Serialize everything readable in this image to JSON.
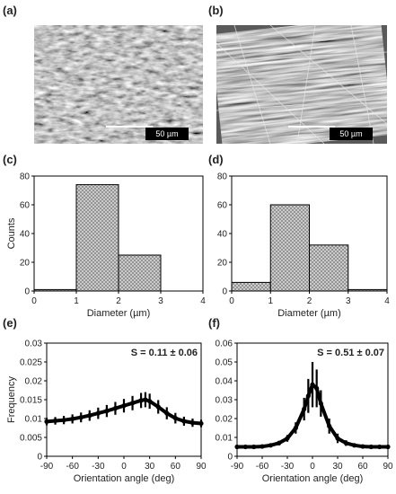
{
  "panels": {
    "a": {
      "label": "(a)",
      "scalebar": "50 µm"
    },
    "b": {
      "label": "(b)",
      "scalebar": "50 µm"
    },
    "c": {
      "label": "(c)"
    },
    "d": {
      "label": "(d)"
    },
    "e": {
      "label": "(e)"
    },
    "f": {
      "label": "(f)"
    }
  },
  "colors": {
    "bar_fill": "#d4d4d4",
    "bar_stroke": "#000000",
    "line": "#000000"
  },
  "chart_data": [
    {
      "id": "c",
      "type": "bar",
      "bin_edges": [
        0,
        1,
        2,
        3,
        4
      ],
      "values": [
        1,
        74,
        25,
        0
      ],
      "xlabel": "Diameter (µm)",
      "ylabel": "Counts",
      "xlim": [
        0,
        4
      ],
      "ylim": [
        0,
        80
      ],
      "xticks": [
        0,
        1,
        2,
        3,
        4
      ],
      "yticks": [
        0,
        20,
        40,
        60,
        80
      ],
      "fill_pattern": "crosshatch"
    },
    {
      "id": "d",
      "type": "bar",
      "bin_edges": [
        0,
        1,
        2,
        3,
        4
      ],
      "values": [
        6,
        60,
        32,
        1
      ],
      "xlabel": "Diameter (µm)",
      "ylabel": "",
      "xlim": [
        0,
        4
      ],
      "ylim": [
        0,
        80
      ],
      "xticks": [
        0,
        1,
        2,
        3,
        4
      ],
      "yticks": [
        0,
        20,
        40,
        60,
        80
      ],
      "fill_pattern": "crosshatch"
    },
    {
      "id": "e",
      "type": "line",
      "annotation": "S = 0.11 ± 0.06",
      "xlabel": "Orientation angle (deg)",
      "ylabel": "Frequency",
      "xlim": [
        -90,
        90
      ],
      "ylim": [
        0,
        0.03
      ],
      "xticks": [
        -90,
        -60,
        -30,
        0,
        30,
        60,
        90
      ],
      "yticks": [
        0,
        0.005,
        0.01,
        0.015,
        0.02,
        0.025,
        0.03
      ],
      "ytick_labels": [
        "0",
        "0.005",
        "0.01",
        "0.015",
        "0.02",
        "0.025",
        "0.03"
      ],
      "x": [
        -90,
        -80,
        -70,
        -60,
        -50,
        -40,
        -30,
        -20,
        -10,
        0,
        10,
        20,
        25,
        30,
        40,
        50,
        60,
        70,
        80,
        90
      ],
      "y": [
        0.0092,
        0.0094,
        0.0096,
        0.0099,
        0.0103,
        0.0108,
        0.0114,
        0.012,
        0.0127,
        0.0134,
        0.0141,
        0.0148,
        0.015,
        0.0146,
        0.0131,
        0.0114,
        0.0101,
        0.0093,
        0.0089,
        0.0087
      ],
      "error": [
        0.001,
        0.001,
        0.0011,
        0.0012,
        0.0013,
        0.0014,
        0.0015,
        0.0016,
        0.0017,
        0.0018,
        0.0019,
        0.002,
        0.002,
        0.002,
        0.0018,
        0.0016,
        0.0014,
        0.0012,
        0.0011,
        0.001
      ]
    },
    {
      "id": "f",
      "type": "line",
      "annotation": "S = 0.51 ± 0.07",
      "xlabel": "Orientation angle (deg)",
      "ylabel": "",
      "xlim": [
        -90,
        90
      ],
      "ylim": [
        0,
        0.06
      ],
      "xticks": [
        -90,
        -60,
        -30,
        0,
        30,
        60,
        90
      ],
      "yticks": [
        0,
        0.01,
        0.02,
        0.03,
        0.04,
        0.05,
        0.06
      ],
      "ytick_labels": [
        "0",
        "0.01",
        "0.02",
        "0.03",
        "0.04",
        "0.05",
        "0.06"
      ],
      "x": [
        -90,
        -80,
        -70,
        -60,
        -50,
        -40,
        -30,
        -20,
        -10,
        -5,
        0,
        5,
        10,
        20,
        30,
        40,
        50,
        60,
        70,
        80,
        90
      ],
      "y": [
        0.005,
        0.005,
        0.005,
        0.0052,
        0.0058,
        0.007,
        0.0095,
        0.015,
        0.025,
        0.032,
        0.038,
        0.036,
        0.028,
        0.016,
        0.0095,
        0.007,
        0.0058,
        0.0052,
        0.005,
        0.005,
        0.005
      ],
      "error": [
        0.0005,
        0.0005,
        0.0006,
        0.0007,
        0.0009,
        0.0012,
        0.0018,
        0.003,
        0.006,
        0.009,
        0.012,
        0.01,
        0.007,
        0.004,
        0.0025,
        0.0015,
        0.001,
        0.0008,
        0.0006,
        0.0005,
        0.0005
      ]
    }
  ]
}
